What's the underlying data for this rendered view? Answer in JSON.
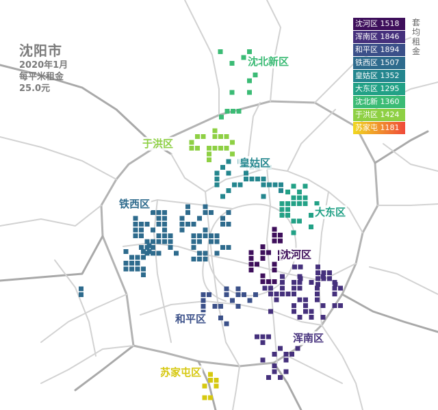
{
  "title": {
    "city": "沈阳市",
    "date": "2020年1月",
    "metric": "每平米租金",
    "value": "25.0元"
  },
  "legend_title": "套均租金",
  "legend": [
    {
      "label": "沈河区 1518",
      "color": "#3e0f5b"
    },
    {
      "label": "浑南区 1846",
      "color": "#45307c"
    },
    {
      "label": "和平区 1894",
      "color": "#3b5089"
    },
    {
      "label": "铁西区 1507",
      "color": "#2e6b8d"
    },
    {
      "label": "皇姑区 1352",
      "color": "#24868e"
    },
    {
      "label": "大东区 1295",
      "color": "#22a186"
    },
    {
      "label": "沈北新 1360",
      "color": "#3bbb75"
    },
    {
      "label": "于洪区 1424",
      "color": "#8ed044"
    },
    {
      "label": "苏家屯 1181",
      "color": "#f0d820",
      "gradient_to": "#f04a3a"
    }
  ],
  "districts": {
    "shenbei": {
      "label": "沈北新区",
      "color": "#3bbb75"
    },
    "yuhong": {
      "label": "于洪区",
      "color": "#8ed044"
    },
    "huanggu": {
      "label": "皇姑区",
      "color": "#24868e"
    },
    "tiexi": {
      "label": "铁西区",
      "color": "#2e6b8d"
    },
    "dadong": {
      "label": "大东区",
      "color": "#22a186"
    },
    "shenhe": {
      "label": "沈河区",
      "color": "#3e0f5b"
    },
    "heping": {
      "label": "和平区",
      "color": "#3b5089"
    },
    "hunnan": {
      "label": "浑南区",
      "color": "#45307c"
    },
    "sujiatun": {
      "label": "苏家屯区",
      "color": "#d6c80f"
    }
  }
}
